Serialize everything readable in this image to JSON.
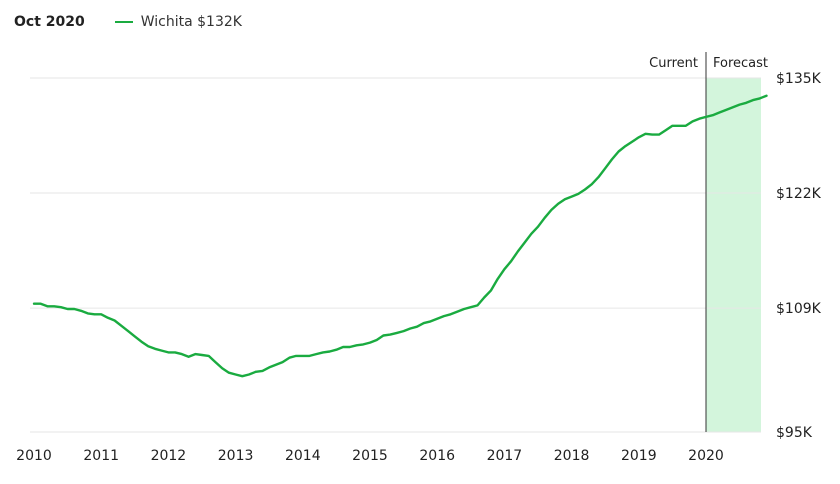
{
  "header": {
    "date": "Oct 2020",
    "legend_label": "Wichita $132K"
  },
  "colors": {
    "line": "#1aab40",
    "forecast_fill": "#d3f5dc",
    "grid": "#e6e6e6",
    "divider": "#333333"
  },
  "chart_data": {
    "type": "line",
    "title": "",
    "xlabel": "",
    "ylabel": "",
    "series": [
      {
        "name": "Wichita",
        "x": [
          2010.0,
          2010.1,
          2010.2,
          2010.3,
          2010.4,
          2010.5,
          2010.6,
          2010.7,
          2010.8,
          2010.9,
          2011.0,
          2011.1,
          2011.2,
          2011.3,
          2011.4,
          2011.5,
          2011.6,
          2011.7,
          2011.8,
          2011.9,
          2012.0,
          2012.1,
          2012.2,
          2012.3,
          2012.4,
          2012.5,
          2012.6,
          2012.7,
          2012.8,
          2012.9,
          2013.0,
          2013.1,
          2013.2,
          2013.3,
          2013.4,
          2013.5,
          2013.6,
          2013.7,
          2013.8,
          2013.9,
          2014.0,
          2014.1,
          2014.2,
          2014.3,
          2014.4,
          2014.5,
          2014.6,
          2014.7,
          2014.8,
          2014.9,
          2015.0,
          2015.1,
          2015.2,
          2015.3,
          2015.4,
          2015.5,
          2015.6,
          2015.7,
          2015.8,
          2015.9,
          2016.0,
          2016.1,
          2016.2,
          2016.3,
          2016.4,
          2016.5,
          2016.6,
          2016.7,
          2016.8,
          2016.9,
          2017.0,
          2017.1,
          2017.2,
          2017.3,
          2017.4,
          2017.5,
          2017.6,
          2017.7,
          2017.8,
          2017.9,
          2018.0,
          2018.1,
          2018.2,
          2018.3,
          2018.4,
          2018.5,
          2018.6,
          2018.7,
          2018.8,
          2018.9,
          2019.0,
          2019.1,
          2019.2,
          2019.3,
          2019.4,
          2019.5,
          2019.6,
          2019.7,
          2019.8,
          2019.9,
          2020.0,
          2020.1,
          2020.2,
          2020.3,
          2020.4,
          2020.5,
          2020.6,
          2020.7,
          2020.8,
          2020.9
        ],
        "y": [
          109.5,
          109.5,
          109.2,
          109.2,
          109.1,
          108.9,
          108.9,
          108.7,
          108.4,
          108.3,
          108.3,
          107.9,
          107.6,
          107.0,
          106.4,
          105.8,
          105.2,
          104.7,
          104.4,
          104.2,
          104.0,
          104.0,
          103.8,
          103.5,
          103.8,
          103.7,
          103.6,
          102.9,
          102.2,
          101.7,
          101.5,
          101.3,
          101.5,
          101.8,
          101.9,
          102.3,
          102.6,
          102.9,
          103.4,
          103.6,
          103.6,
          103.6,
          103.8,
          104.0,
          104.1,
          104.3,
          104.6,
          104.6,
          104.8,
          104.9,
          105.1,
          105.4,
          105.9,
          106.0,
          106.2,
          106.4,
          106.7,
          106.9,
          107.3,
          107.5,
          107.8,
          108.1,
          108.3,
          108.6,
          108.9,
          109.1,
          109.3,
          110.2,
          111.0,
          112.3,
          113.4,
          114.3,
          115.4,
          116.4,
          117.4,
          118.2,
          119.2,
          120.1,
          120.8,
          121.3,
          121.6,
          121.9,
          122.4,
          123.0,
          123.8,
          124.8,
          125.8,
          126.7,
          127.3,
          127.8,
          128.3,
          128.7,
          128.6,
          128.6,
          129.1,
          129.6,
          129.6,
          129.6,
          130.1,
          130.4,
          130.6,
          130.8,
          131.1,
          131.4,
          131.7,
          132.0,
          132.2,
          132.5,
          132.7,
          133.0
        ]
      }
    ],
    "xticks": [
      "2010",
      "2011",
      "2012",
      "2013",
      "2014",
      "2015",
      "2016",
      "2017",
      "2018",
      "2019",
      "2020"
    ],
    "yticks": [
      "$95K",
      "$109K",
      "$122K",
      "$135K"
    ],
    "xlim": [
      2010,
      2020.9
    ],
    "ylim": [
      95,
      135
    ],
    "forecast_start": 2020.0,
    "annotations": {
      "current": "Current",
      "forecast": "Forecast"
    },
    "grid": true,
    "legend_position": "top-left"
  }
}
